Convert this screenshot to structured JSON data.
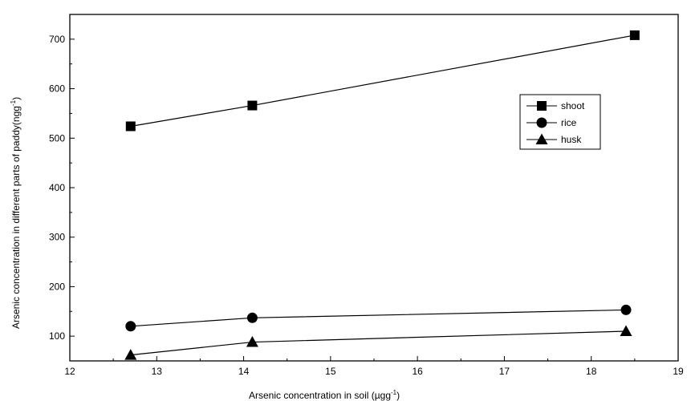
{
  "chart_data": {
    "type": "line",
    "xlabel": "Arsenic concentration in soil (µgg",
    "xlabel_sup": "-1",
    "xlabel_end": ")",
    "ylabel": "Arsenic concentration in different parts of paddy(ngg",
    "ylabel_sup": "-1",
    "ylabel_end": ")",
    "xlim": [
      12,
      19
    ],
    "ylim": [
      50,
      750
    ],
    "x_ticks": [
      12,
      13,
      14,
      15,
      16,
      17,
      18,
      19
    ],
    "y_ticks": [
      100,
      200,
      300,
      400,
      500,
      600,
      700
    ],
    "grid": false,
    "legend_position": "right, upper-middle",
    "series": [
      {
        "name": "shoot",
        "marker": "square",
        "x": [
          12.7,
          14.1,
          18.5
        ],
        "y": [
          524,
          566,
          708
        ]
      },
      {
        "name": "rice",
        "marker": "circle",
        "x": [
          12.7,
          14.1,
          18.4
        ],
        "y": [
          120,
          137,
          153
        ]
      },
      {
        "name": "husk",
        "marker": "triangle",
        "x": [
          12.7,
          14.1,
          18.4
        ],
        "y": [
          62,
          88,
          110
        ]
      }
    ]
  }
}
